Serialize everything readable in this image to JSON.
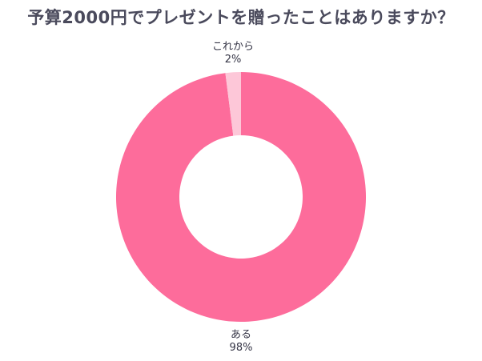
{
  "chart_data": {
    "type": "pie",
    "title": "予算2000円でプレゼントを贈ったことはありますか？",
    "slices": [
      {
        "label": "ある",
        "value": 98,
        "value_text": "98%",
        "color": "#fd6c9b"
      },
      {
        "label": "これから",
        "value": 2,
        "value_text": "2%",
        "color": "#fdc7d8"
      }
    ],
    "donut": true
  }
}
